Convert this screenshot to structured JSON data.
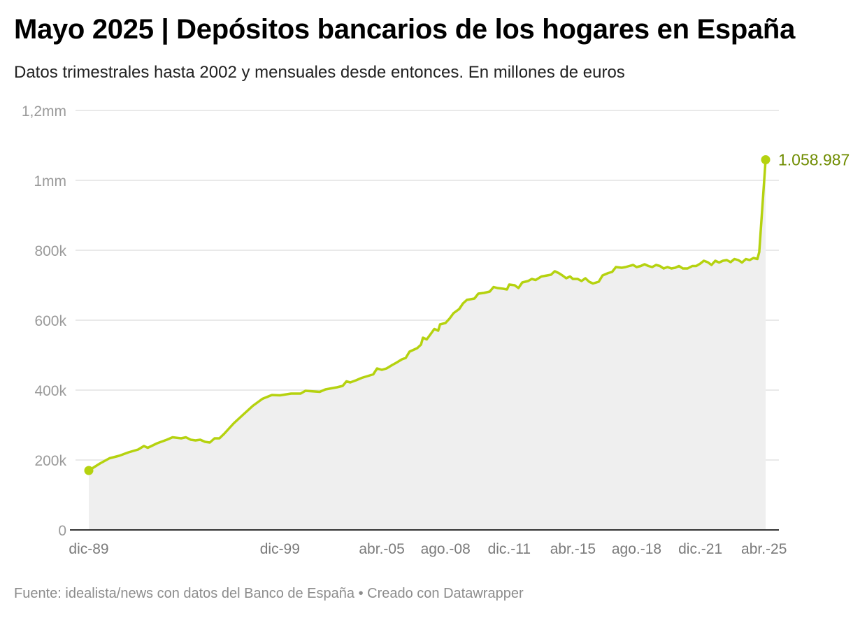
{
  "header": {
    "title": "Mayo 2025 | Depósitos bancarios de los hogares en España",
    "subtitle": "Datos trimestrales hasta 2002 y mensuales desde entonces. En millones de euros"
  },
  "footer": {
    "source_label": "Fuente:",
    "source": "idealista/news con datos del Banco de España",
    "separator": "•",
    "credit": "Creado con Datawrapper"
  },
  "colors": {
    "line": "#b5d20f",
    "area": "#efefef",
    "grid": "#e2e2e2",
    "axis_text": "#9a9a9a",
    "end_label": "#6f8c00"
  },
  "chart_data": {
    "type": "area",
    "title": "Mayo 2025 | Depósitos bancarios de los hogares en España",
    "subtitle": "Datos trimestrales hasta 2002 y mensuales desde entonces. En millones de euros",
    "ylim": [
      0,
      1200000
    ],
    "y_ticks": [
      {
        "value": 0,
        "label": "0"
      },
      {
        "value": 200000,
        "label": "200k"
      },
      {
        "value": 400000,
        "label": "400k"
      },
      {
        "value": 600000,
        "label": "600k"
      },
      {
        "value": 800000,
        "label": "800k"
      },
      {
        "value": 1000000,
        "label": "1mm"
      },
      {
        "value": 1200000,
        "label": "1,2mm"
      }
    ],
    "xlim": [
      1989.917,
      2025.333
    ],
    "x_ticks": [
      {
        "value": 1989.917,
        "label": "dic-89"
      },
      {
        "value": 1999.917,
        "label": "dic-99"
      },
      {
        "value": 2005.25,
        "label": "abr.-05"
      },
      {
        "value": 2008.583,
        "label": "ago.-08"
      },
      {
        "value": 2011.917,
        "label": "dic.-11"
      },
      {
        "value": 2015.25,
        "label": "abr.-15"
      },
      {
        "value": 2018.583,
        "label": "ago.-18"
      },
      {
        "value": 2021.917,
        "label": "dic.-21"
      },
      {
        "value": 2025.25,
        "label": "abr.-25"
      }
    ],
    "end_label": "1.058.987",
    "series": [
      {
        "points": [
          [
            1989.917,
            170000
          ],
          [
            1990.5,
            190000
          ],
          [
            1991.0,
            205000
          ],
          [
            1991.5,
            212000
          ],
          [
            1992.0,
            222000
          ],
          [
            1992.5,
            230000
          ],
          [
            1992.8,
            240000
          ],
          [
            1993.0,
            235000
          ],
          [
            1993.5,
            248000
          ],
          [
            1994.0,
            258000
          ],
          [
            1994.3,
            265000
          ],
          [
            1994.75,
            262000
          ],
          [
            1995.0,
            265000
          ],
          [
            1995.25,
            258000
          ],
          [
            1995.5,
            256000
          ],
          [
            1995.75,
            258000
          ],
          [
            1996.0,
            252000
          ],
          [
            1996.25,
            250000
          ],
          [
            1996.5,
            262000
          ],
          [
            1996.75,
            262000
          ],
          [
            1997.0,
            275000
          ],
          [
            1997.5,
            305000
          ],
          [
            1998.0,
            330000
          ],
          [
            1998.5,
            355000
          ],
          [
            1999.0,
            375000
          ],
          [
            1999.5,
            386000
          ],
          [
            1999.917,
            385000
          ],
          [
            2000.5,
            390000
          ],
          [
            2001.0,
            390000
          ],
          [
            2001.25,
            398000
          ],
          [
            2001.75,
            396000
          ],
          [
            2002.0,
            395000
          ],
          [
            2002.3,
            402000
          ],
          [
            2002.6,
            405000
          ],
          [
            2002.9,
            408000
          ],
          [
            2003.2,
            412000
          ],
          [
            2003.4,
            425000
          ],
          [
            2003.6,
            422000
          ],
          [
            2003.9,
            428000
          ],
          [
            2004.2,
            435000
          ],
          [
            2004.5,
            440000
          ],
          [
            2004.8,
            445000
          ],
          [
            2005.0,
            462000
          ],
          [
            2005.25,
            458000
          ],
          [
            2005.5,
            462000
          ],
          [
            2005.8,
            472000
          ],
          [
            2006.0,
            478000
          ],
          [
            2006.3,
            488000
          ],
          [
            2006.5,
            492000
          ],
          [
            2006.7,
            510000
          ],
          [
            2006.9,
            515000
          ],
          [
            2007.1,
            520000
          ],
          [
            2007.3,
            530000
          ],
          [
            2007.4,
            550000
          ],
          [
            2007.6,
            545000
          ],
          [
            2007.8,
            560000
          ],
          [
            2008.0,
            575000
          ],
          [
            2008.2,
            570000
          ],
          [
            2008.3,
            588000
          ],
          [
            2008.583,
            592000
          ],
          [
            2008.8,
            605000
          ],
          [
            2009.0,
            620000
          ],
          [
            2009.3,
            632000
          ],
          [
            2009.5,
            648000
          ],
          [
            2009.7,
            658000
          ],
          [
            2009.9,
            660000
          ],
          [
            2010.1,
            662000
          ],
          [
            2010.3,
            676000
          ],
          [
            2010.6,
            678000
          ],
          [
            2010.9,
            682000
          ],
          [
            2011.1,
            695000
          ],
          [
            2011.3,
            692000
          ],
          [
            2011.6,
            690000
          ],
          [
            2011.8,
            688000
          ],
          [
            2011.917,
            702000
          ],
          [
            2012.2,
            700000
          ],
          [
            2012.4,
            692000
          ],
          [
            2012.6,
            708000
          ],
          [
            2012.9,
            712000
          ],
          [
            2013.1,
            718000
          ],
          [
            2013.3,
            715000
          ],
          [
            2013.6,
            725000
          ],
          [
            2013.9,
            728000
          ],
          [
            2014.1,
            730000
          ],
          [
            2014.3,
            740000
          ],
          [
            2014.5,
            735000
          ],
          [
            2014.7,
            728000
          ],
          [
            2014.9,
            720000
          ],
          [
            2015.1,
            725000
          ],
          [
            2015.25,
            718000
          ],
          [
            2015.5,
            718000
          ],
          [
            2015.7,
            712000
          ],
          [
            2015.9,
            720000
          ],
          [
            2016.1,
            710000
          ],
          [
            2016.3,
            705000
          ],
          [
            2016.6,
            710000
          ],
          [
            2016.8,
            728000
          ],
          [
            2017.1,
            735000
          ],
          [
            2017.3,
            738000
          ],
          [
            2017.5,
            752000
          ],
          [
            2017.8,
            750000
          ],
          [
            2018.0,
            752000
          ],
          [
            2018.2,
            755000
          ],
          [
            2018.4,
            758000
          ],
          [
            2018.583,
            752000
          ],
          [
            2018.8,
            755000
          ],
          [
            2019.0,
            760000
          ],
          [
            2019.2,
            755000
          ],
          [
            2019.4,
            752000
          ],
          [
            2019.6,
            758000
          ],
          [
            2019.8,
            755000
          ],
          [
            2020.0,
            748000
          ],
          [
            2020.2,
            752000
          ],
          [
            2020.4,
            748000
          ],
          [
            2020.6,
            750000
          ],
          [
            2020.8,
            755000
          ],
          [
            2021.0,
            748000
          ],
          [
            2021.25,
            748000
          ],
          [
            2021.5,
            755000
          ],
          [
            2021.7,
            755000
          ],
          [
            2021.917,
            762000
          ],
          [
            2022.1,
            770000
          ],
          [
            2022.3,
            766000
          ],
          [
            2022.5,
            758000
          ],
          [
            2022.7,
            770000
          ],
          [
            2022.9,
            765000
          ],
          [
            2023.1,
            770000
          ],
          [
            2023.3,
            772000
          ],
          [
            2023.5,
            766000
          ],
          [
            2023.7,
            775000
          ],
          [
            2023.9,
            772000
          ],
          [
            2024.1,
            765000
          ],
          [
            2024.3,
            775000
          ],
          [
            2024.5,
            772000
          ],
          [
            2024.7,
            778000
          ],
          [
            2024.9,
            775000
          ],
          [
            2025.0,
            795000
          ],
          [
            2025.333,
            1058987
          ]
        ]
      }
    ]
  }
}
